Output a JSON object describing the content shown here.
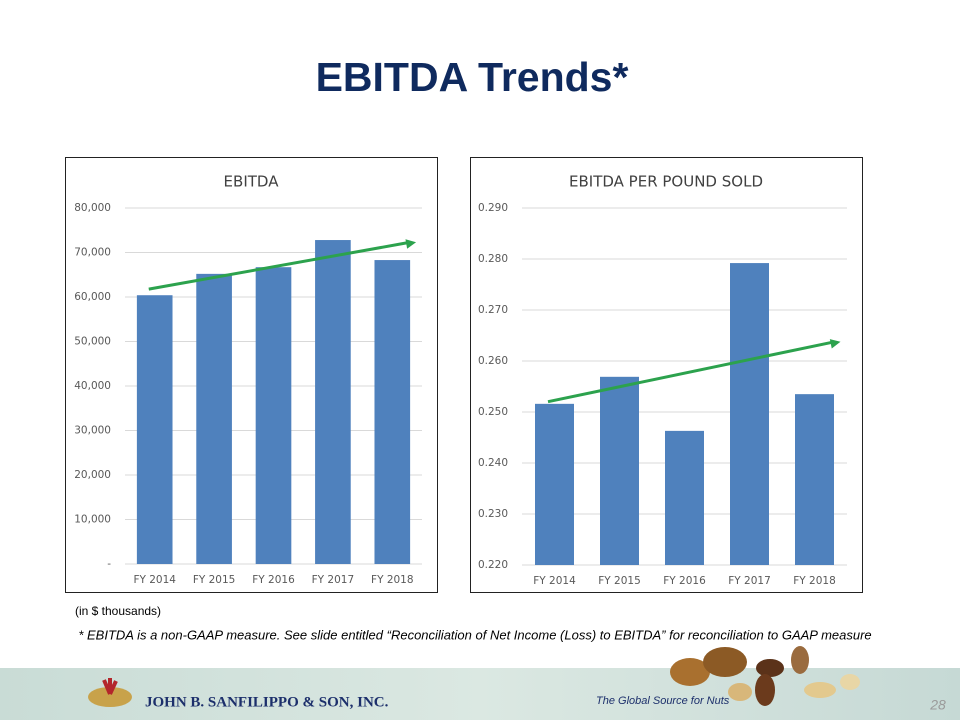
{
  "header": {
    "title": "EBITDA Trends*"
  },
  "chart_data": [
    {
      "type": "bar",
      "title": "EBITDA",
      "categories": [
        "FY 2014",
        "FY 2015",
        "FY 2016",
        "FY 2017",
        "FY 2018"
      ],
      "values": [
        60400,
        65200,
        66700,
        72800,
        68300
      ],
      "color": "#4f81bd",
      "ylim": [
        0,
        80000
      ],
      "yticks": [
        {
          "value": 0,
          "label": "-"
        },
        {
          "value": 10000,
          "label": "10,000"
        },
        {
          "value": 20000,
          "label": "20,000"
        },
        {
          "value": 30000,
          "label": "30,000"
        },
        {
          "value": 40000,
          "label": "40,000"
        },
        {
          "value": 50000,
          "label": "50,000"
        },
        {
          "value": 60000,
          "label": "60,000"
        },
        {
          "value": 70000,
          "label": "70,000"
        },
        {
          "value": 80000,
          "label": "80,000"
        }
      ],
      "grid": true,
      "trendline": true,
      "trendline_color": "#2ca24d"
    },
    {
      "type": "bar",
      "title": "EBITDA PER POUND SOLD",
      "categories": [
        "FY 2014",
        "FY 2015",
        "FY 2016",
        "FY 2017",
        "FY 2018"
      ],
      "values": [
        0.2516,
        0.2569,
        0.2463,
        0.2792,
        0.2535
      ],
      "color": "#4f81bd",
      "ylim": [
        0.22,
        0.29
      ],
      "yticks": [
        {
          "value": 0.22,
          "label": "0.220"
        },
        {
          "value": 0.23,
          "label": "0.230"
        },
        {
          "value": 0.24,
          "label": "0.240"
        },
        {
          "value": 0.25,
          "label": "0.250"
        },
        {
          "value": 0.26,
          "label": "0.260"
        },
        {
          "value": 0.27,
          "label": "0.270"
        },
        {
          "value": 0.28,
          "label": "0.280"
        },
        {
          "value": 0.29,
          "label": "0.290"
        }
      ],
      "grid": true,
      "trendline": true,
      "trendline_color": "#2ca24d"
    }
  ],
  "units_note": "(in $ thousands)",
  "footnote": "* EBITDA is a non-GAAP measure.  See slide entitled  “Reconciliation of Net Income (Loss) to EBITDA”  for reconciliation to GAAP measure",
  "footer": {
    "company": "JOHN B. SANFILIPPO & SON, INC.",
    "tagline": "The Global Source for Nuts",
    "page": "28"
  }
}
